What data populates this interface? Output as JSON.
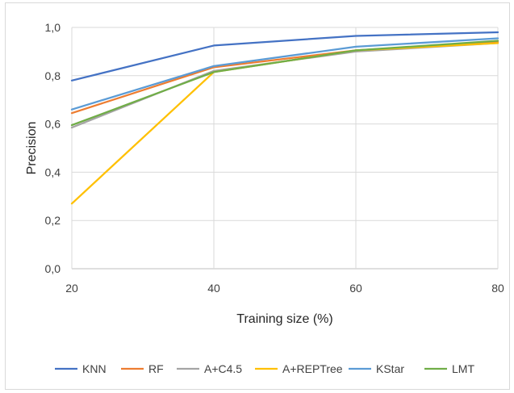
{
  "chart_data": {
    "type": "line",
    "title": "",
    "xlabel": "Training size (%)",
    "ylabel": "Precision",
    "x": [
      20,
      40,
      60,
      80
    ],
    "x_tick_labels": [
      "20",
      "40",
      "60",
      "80"
    ],
    "y_tick_labels": [
      "0,0",
      "0,2",
      "0,4",
      "0,6",
      "0,8",
      "1,0"
    ],
    "ylim": [
      0,
      1
    ],
    "grid": "vertical and horizontal",
    "legend_position": "bottom",
    "series": [
      {
        "name": "KNN",
        "color": "#4472C4",
        "values": [
          0.78,
          0.925,
          0.965,
          0.98
        ]
      },
      {
        "name": "RF",
        "color": "#ED7D31",
        "values": [
          0.645,
          0.835,
          0.905,
          0.94
        ]
      },
      {
        "name": "A+C4.5",
        "color": "#A5A5A5",
        "values": [
          0.585,
          0.82,
          0.9,
          0.935
        ]
      },
      {
        "name": "A+REPTree",
        "color": "#FFC000",
        "values": [
          0.27,
          0.815,
          0.905,
          0.935
        ]
      },
      {
        "name": "KStar",
        "color": "#5B9BD5",
        "values": [
          0.66,
          0.84,
          0.92,
          0.955
        ]
      },
      {
        "name": "LMT",
        "color": "#70AD47",
        "values": [
          0.595,
          0.815,
          0.905,
          0.945
        ]
      }
    ]
  }
}
